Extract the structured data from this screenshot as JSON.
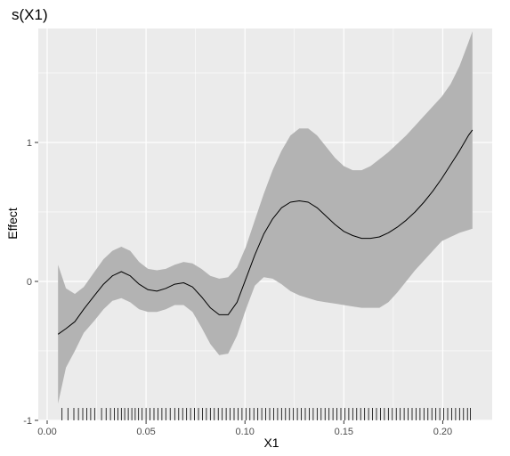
{
  "chart_data": {
    "type": "area",
    "title": "s(X1)",
    "xlabel": "X1",
    "ylabel": "Effect",
    "xlim": [
      -0.0045,
      0.225
    ],
    "ylim": [
      -1.0,
      1.82
    ],
    "grid": true,
    "x_ticks": [
      0.0,
      0.05,
      0.1,
      0.15,
      0.2
    ],
    "x_tick_labels": [
      "0.00",
      "0.05",
      "0.10",
      "0.15",
      "0.20"
    ],
    "y_ticks": [
      -1,
      0,
      1
    ],
    "y_tick_labels": [
      "-1",
      "0",
      "1"
    ],
    "colors": {
      "panel_bg": "#ebebeb",
      "grid": "#ffffff",
      "band": "#b3b3b3",
      "line": "#000000",
      "rug": "#000000",
      "axis_text": "#4d4d4d"
    },
    "series": [
      {
        "x": [
          0.0055,
          0.0095,
          0.014,
          0.0185,
          0.024,
          0.0285,
          0.033,
          0.0375,
          0.042,
          0.0465,
          0.051,
          0.0555,
          0.06,
          0.0645,
          0.069,
          0.0735,
          0.078,
          0.0825,
          0.087,
          0.0915,
          0.096,
          0.1005,
          0.105,
          0.1095,
          0.114,
          0.1185,
          0.123,
          0.1275,
          0.132,
          0.1365,
          0.141,
          0.1455,
          0.15,
          0.1545,
          0.159,
          0.1635,
          0.168,
          0.1725,
          0.177,
          0.1815,
          0.186,
          0.1905,
          0.195,
          0.1995,
          0.204,
          0.2085,
          0.213,
          0.215
        ],
        "fit": [
          -0.38,
          -0.34,
          -0.29,
          -0.2,
          -0.1,
          -0.02,
          0.04,
          0.07,
          0.04,
          -0.02,
          -0.06,
          -0.07,
          -0.05,
          -0.02,
          -0.01,
          -0.04,
          -0.11,
          -0.19,
          -0.24,
          -0.24,
          -0.15,
          0.02,
          0.19,
          0.34,
          0.45,
          0.53,
          0.57,
          0.58,
          0.57,
          0.53,
          0.47,
          0.41,
          0.36,
          0.33,
          0.31,
          0.31,
          0.32,
          0.35,
          0.39,
          0.44,
          0.5,
          0.57,
          0.65,
          0.74,
          0.84,
          0.94,
          1.05,
          1.09
        ],
        "upper": [
          0.12,
          -0.05,
          -0.09,
          -0.04,
          0.07,
          0.16,
          0.22,
          0.25,
          0.22,
          0.14,
          0.09,
          0.08,
          0.09,
          0.12,
          0.14,
          0.13,
          0.09,
          0.04,
          0.02,
          0.03,
          0.1,
          0.25,
          0.44,
          0.63,
          0.8,
          0.94,
          1.05,
          1.1,
          1.1,
          1.05,
          0.97,
          0.89,
          0.83,
          0.8,
          0.8,
          0.83,
          0.88,
          0.93,
          0.99,
          1.05,
          1.12,
          1.19,
          1.26,
          1.33,
          1.42,
          1.55,
          1.72,
          1.8
        ],
        "lower": [
          -0.88,
          -0.62,
          -0.5,
          -0.37,
          -0.28,
          -0.2,
          -0.14,
          -0.12,
          -0.15,
          -0.2,
          -0.22,
          -0.22,
          -0.2,
          -0.17,
          -0.17,
          -0.22,
          -0.33,
          -0.45,
          -0.53,
          -0.52,
          -0.39,
          -0.2,
          -0.03,
          0.03,
          0.02,
          -0.02,
          -0.07,
          -0.1,
          -0.12,
          -0.14,
          -0.15,
          -0.16,
          -0.17,
          -0.18,
          -0.19,
          -0.19,
          -0.19,
          -0.15,
          -0.08,
          0.0,
          0.08,
          0.15,
          0.22,
          0.29,
          0.32,
          0.35,
          0.37,
          0.38
        ]
      }
    ],
    "rug": [
      0.0075,
      0.0105,
      0.0135,
      0.0158,
      0.018,
      0.02,
      0.022,
      0.024,
      0.0275,
      0.0298,
      0.032,
      0.034,
      0.0358,
      0.0375,
      0.0392,
      0.041,
      0.0428,
      0.0445,
      0.0462,
      0.048,
      0.05,
      0.052,
      0.054,
      0.056,
      0.058,
      0.06,
      0.0622,
      0.0645,
      0.0665,
      0.0685,
      0.0705,
      0.0725,
      0.0745,
      0.0765,
      0.0785,
      0.0805,
      0.0825,
      0.0845,
      0.0865,
      0.0885,
      0.0905,
      0.0925,
      0.0945,
      0.0965,
      0.0985,
      0.1005,
      0.1025,
      0.1045,
      0.1065,
      0.1085,
      0.1105,
      0.1125,
      0.1145,
      0.1165,
      0.1185,
      0.1205,
      0.1225,
      0.1245,
      0.1265,
      0.1285,
      0.1305,
      0.1325,
      0.1345,
      0.1365,
      0.1385,
      0.1405,
      0.1425,
      0.1445,
      0.1465,
      0.1485,
      0.1505,
      0.1525,
      0.1545,
      0.1565,
      0.1585,
      0.1605,
      0.1625,
      0.1645,
      0.1665,
      0.1685,
      0.1705,
      0.1725,
      0.1745,
      0.1765,
      0.1785,
      0.1805,
      0.1825,
      0.1845,
      0.1865,
      0.1885,
      0.1905,
      0.1925,
      0.1945,
      0.1965,
      0.1985,
      0.2005,
      0.2025,
      0.2045,
      0.2065,
      0.2085,
      0.2105,
      0.2125,
      0.214
    ]
  }
}
